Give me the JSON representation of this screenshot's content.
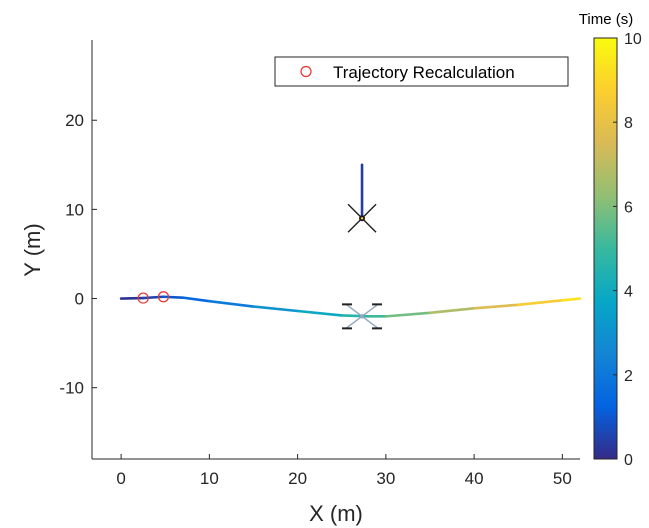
{
  "chart_data": {
    "type": "line",
    "xlabel": "X (m)",
    "ylabel": "Y (m)",
    "xlim": [
      -3.3,
      52
    ],
    "ylim": [
      -18,
      29
    ],
    "xticks": [
      0,
      10,
      20,
      30,
      40,
      50
    ],
    "yticks": [
      -10,
      0,
      10,
      20
    ],
    "grid": false,
    "legend": {
      "placement": "top-right",
      "entries": [
        "Trajectory Recalculation"
      ]
    },
    "colorbar": {
      "title": "Time (s)",
      "range": [
        0,
        10
      ],
      "ticks": [
        0,
        2,
        4,
        6,
        8,
        10
      ],
      "colormap": "parula"
    },
    "series": [
      {
        "x": [
          0,
          2.5,
          4.8,
          7,
          10,
          15,
          20,
          25,
          28,
          30,
          35,
          40,
          45,
          50,
          52
        ],
        "y": [
          0,
          0.05,
          0.2,
          0.1,
          -0.3,
          -0.9,
          -1.4,
          -1.9,
          -2.0,
          -2.0,
          -1.6,
          -1.1,
          -0.7,
          -0.2,
          0
        ],
        "t": [
          0,
          0.4,
          0.8,
          1.2,
          1.7,
          2.6,
          3.4,
          4.3,
          4.9,
          5.3,
          6.3,
          7.2,
          8.1,
          9.1,
          9.6
        ]
      },
      {
        "x": [
          27.3,
          27.3
        ],
        "y": [
          15,
          9
        ],
        "t": [
          0.4,
          0.4
        ]
      }
    ],
    "markers": [
      {
        "x": 2.5,
        "y": 0.05
      },
      {
        "x": 4.8,
        "y": 0.2
      }
    ],
    "agents": [
      {
        "x": 27.3,
        "y": 9,
        "heading": "down"
      },
      {
        "x": 27.3,
        "y": -2,
        "heading": "right"
      }
    ],
    "colors": {
      "marker": "#e8332f",
      "axis": "#262626",
      "agent_dark": "#222222",
      "agent_light": "#8fa7c0"
    }
  }
}
